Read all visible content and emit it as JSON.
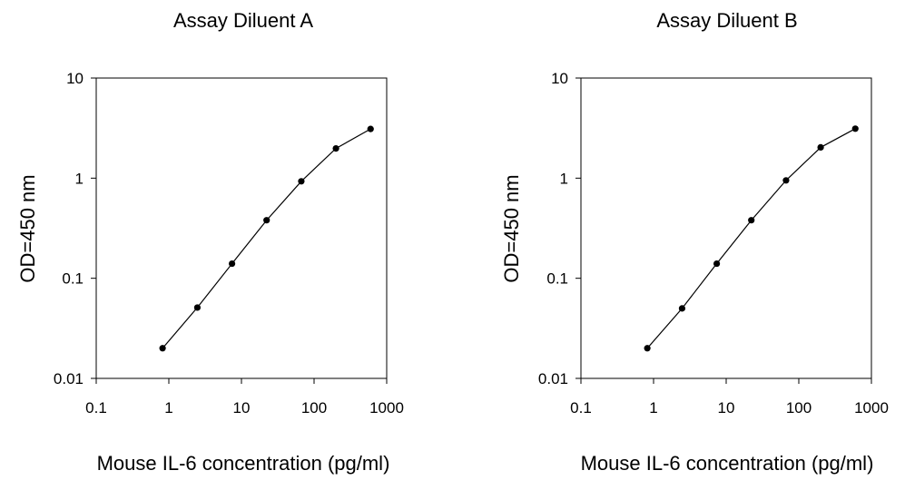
{
  "chart_data": [
    {
      "type": "line",
      "title": "Assay Diluent A",
      "xlabel": "Mouse IL-6 concentration (pg/ml)",
      "ylabel": "OD=450 nm",
      "x_scale": "log",
      "y_scale": "log",
      "xlim": [
        0.1,
        1000
      ],
      "ylim": [
        0.01,
        10
      ],
      "xticks": [
        "0.1",
        "1",
        "10",
        "100",
        "1000"
      ],
      "yticks": [
        "0.01",
        "0.1",
        "1",
        "10"
      ],
      "grid": false,
      "series": [
        {
          "x": [
            0.82,
            2.47,
            7.41,
            22.2,
            66.7,
            200,
            600
          ],
          "y": [
            0.02,
            0.051,
            0.14,
            0.38,
            0.93,
            1.98,
            3.1
          ]
        }
      ]
    },
    {
      "type": "line",
      "title": "Assay Diluent B",
      "xlabel": "Mouse IL-6 concentration (pg/ml)",
      "ylabel": "OD=450 nm",
      "x_scale": "log",
      "y_scale": "log",
      "xlim": [
        0.1,
        1000
      ],
      "ylim": [
        0.01,
        10
      ],
      "xticks": [
        "0.1",
        "1",
        "10",
        "100",
        "1000"
      ],
      "yticks": [
        "0.01",
        "0.1",
        "1",
        "10"
      ],
      "grid": false,
      "series": [
        {
          "x": [
            0.82,
            2.47,
            7.41,
            22.2,
            66.7,
            200,
            600
          ],
          "y": [
            0.02,
            0.05,
            0.14,
            0.38,
            0.95,
            2.03,
            3.12
          ]
        }
      ]
    }
  ],
  "colors": {
    "line": "#000000",
    "marker": "#000000",
    "axis": "#000000"
  }
}
